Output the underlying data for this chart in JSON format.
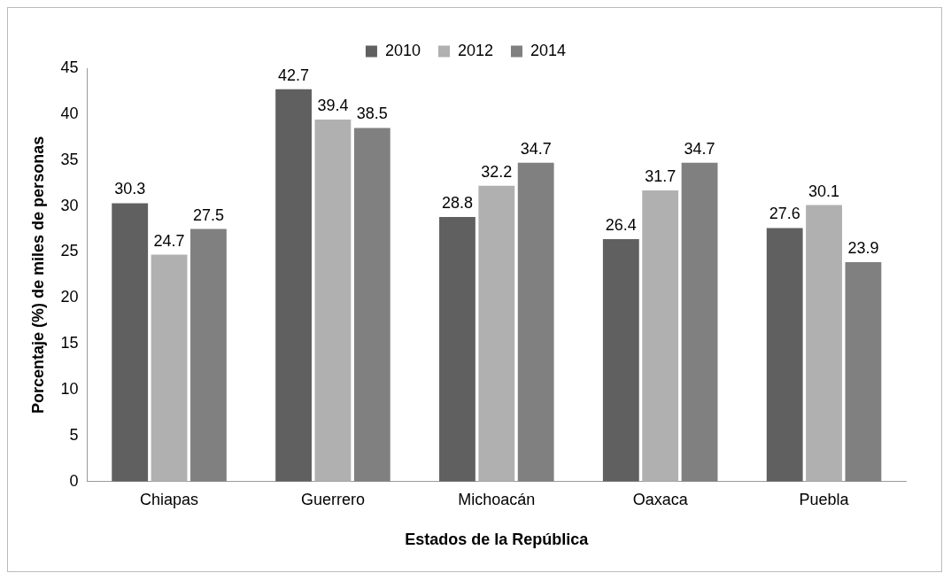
{
  "chart_data": {
    "type": "bar",
    "xlabel": "Estados de la República",
    "ylabel": "Porcentaje (%) de miles de personas",
    "categories": [
      "Chiapas",
      "Guerrero",
      "Michoacán",
      "Oaxaca",
      "Puebla"
    ],
    "series": [
      {
        "name": "2010",
        "color": "#606060",
        "values": [
          30.3,
          42.7,
          28.8,
          26.4,
          27.6
        ]
      },
      {
        "name": "2012",
        "color": "#b0b0b0",
        "values": [
          24.7,
          39.4,
          32.2,
          31.7,
          30.1
        ]
      },
      {
        "name": "2014",
        "color": "#808080",
        "values": [
          27.5,
          38.5,
          34.7,
          34.7,
          23.9
        ]
      }
    ],
    "ylim": [
      0,
      45
    ],
    "yticks": [
      0,
      5,
      10,
      15,
      20,
      25,
      30,
      35,
      40,
      45
    ],
    "grid": false,
    "legend": "top",
    "data_labels": true
  }
}
